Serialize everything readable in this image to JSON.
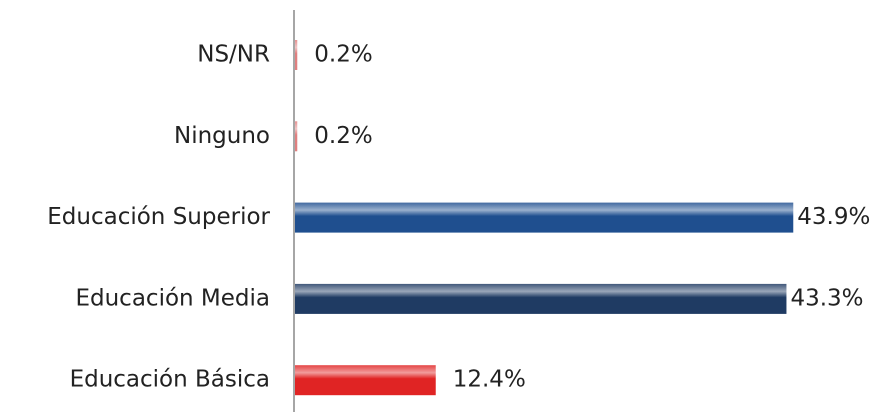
{
  "chart_data": {
    "type": "barh",
    "categories": [
      "NS/NR",
      "Ninguno",
      "Educación Superior",
      "Educación Media",
      "Educación Básica"
    ],
    "values": [
      0.2,
      0.2,
      43.9,
      43.3,
      12.4
    ],
    "value_labels": [
      "0.2%",
      "0.2%",
      "43.9%",
      "43.3%",
      "12.4%"
    ],
    "colors": [
      "#e08080",
      "#e08080",
      "#1f4f8f",
      "#1f3b63",
      "#e02424"
    ]
  }
}
